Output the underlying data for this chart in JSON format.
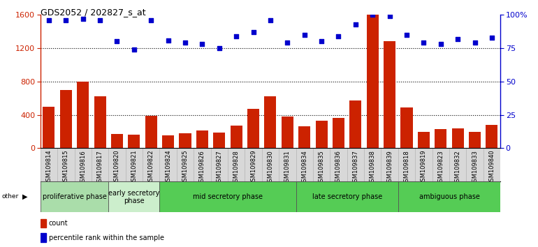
{
  "title": "GDS2052 / 202827_s_at",
  "samples": [
    "GSM109814",
    "GSM109815",
    "GSM109816",
    "GSM109817",
    "GSM109820",
    "GSM109821",
    "GSM109822",
    "GSM109824",
    "GSM109825",
    "GSM109826",
    "GSM109827",
    "GSM109828",
    "GSM109829",
    "GSM109830",
    "GSM109831",
    "GSM109834",
    "GSM109835",
    "GSM109836",
    "GSM109837",
    "GSM109838",
    "GSM109839",
    "GSM109818",
    "GSM109819",
    "GSM109823",
    "GSM109832",
    "GSM109833",
    "GSM109840"
  ],
  "counts": [
    500,
    700,
    800,
    620,
    170,
    160,
    390,
    150,
    175,
    210,
    190,
    270,
    470,
    620,
    380,
    260,
    330,
    360,
    570,
    1600,
    1280,
    490,
    200,
    230,
    240,
    200,
    280
  ],
  "percentiles": [
    96,
    96,
    97,
    96,
    80,
    74,
    96,
    81,
    79,
    78,
    75,
    84,
    87,
    96,
    79,
    85,
    80,
    84,
    93,
    100,
    99,
    85,
    79,
    78,
    82,
    79,
    83
  ],
  "phases": [
    {
      "label": "proliferative phase",
      "start": 0,
      "end": 4,
      "color": "#aaddaa"
    },
    {
      "label": "early secretory\nphase",
      "start": 4,
      "end": 7,
      "color": "#cceecc"
    },
    {
      "label": "mid secretory phase",
      "start": 7,
      "end": 15,
      "color": "#55cc55"
    },
    {
      "label": "late secretory phase",
      "start": 15,
      "end": 21,
      "color": "#55cc55"
    },
    {
      "label": "ambiguous phase",
      "start": 21,
      "end": 27,
      "color": "#55cc55"
    }
  ],
  "bar_color": "#cc2200",
  "dot_color": "#0000cc",
  "ylim_left": [
    0,
    1600
  ],
  "ylim_right": [
    0,
    100
  ],
  "yticks_left": [
    0,
    400,
    800,
    1200,
    1600
  ],
  "yticks_right": [
    0,
    25,
    50,
    75,
    100
  ],
  "ytick_labels_right": [
    "0",
    "25",
    "50",
    "75",
    "100%"
  ],
  "gridlines_at": [
    400,
    800,
    1200
  ],
  "tick_label_bg": "#d8d8d8",
  "label_fontsize": 6,
  "phase_fontsize": 7
}
